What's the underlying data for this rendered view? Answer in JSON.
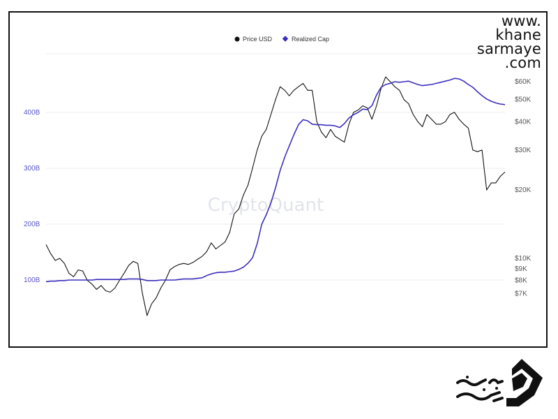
{
  "brand": {
    "site_lines": [
      "www.",
      "khane",
      "sarmaye",
      ".com"
    ],
    "watermark": "CryptoQuant",
    "logo_icon": "khane-sarmaye-logo-icon"
  },
  "colors": {
    "price": "#111111",
    "realized_cap": "#3b2ebd",
    "left_axis_text": "#5a53c6",
    "right_axis_text": "#555555",
    "grid": "#ececec"
  },
  "chart_data": {
    "type": "line",
    "legend": [
      "Price USD",
      "Realized Cap"
    ],
    "legend_placement": "top-center",
    "grid": true,
    "left_axis": {
      "ticks": [
        {
          "value": 100,
          "label": "100B"
        },
        {
          "value": 200,
          "label": "200B"
        },
        {
          "value": 300,
          "label": "300B"
        },
        {
          "value": 400,
          "label": "400B"
        }
      ],
      "unit": "B",
      "range": [
        35,
        505
      ]
    },
    "right_axis": {
      "scale": "log",
      "ticks": [
        {
          "value": 7000,
          "label": "$7K"
        },
        {
          "value": 8000,
          "label": "$8K"
        },
        {
          "value": 9000,
          "label": "$9K"
        },
        {
          "value": 10000,
          "label": "$10K"
        },
        {
          "value": 20000,
          "label": "$20K"
        },
        {
          "value": 30000,
          "label": "$30K"
        },
        {
          "value": 40000,
          "label": "$40K"
        },
        {
          "value": 50000,
          "label": "$50K"
        },
        {
          "value": 60000,
          "label": "$60K"
        }
      ]
    },
    "x_range": [
      0,
      100
    ],
    "series": [
      {
        "name": "Price USD",
        "axis": "right",
        "x": [
          0,
          1,
          2,
          3,
          4,
          5,
          6,
          7,
          8,
          9,
          10,
          11,
          12,
          13,
          14,
          15,
          16,
          17,
          18,
          19,
          20,
          21,
          22,
          23,
          24,
          25,
          26,
          27,
          28,
          29,
          30,
          31,
          32,
          33,
          34,
          35,
          36,
          37,
          38,
          39,
          40,
          41,
          42,
          43,
          44,
          45,
          46,
          47,
          48,
          49,
          50,
          51,
          52,
          53,
          54,
          55,
          56,
          57,
          58,
          59,
          60,
          61,
          62,
          63,
          64,
          65,
          66,
          67,
          68,
          69,
          70,
          71,
          72,
          73,
          74,
          75,
          76,
          77,
          78,
          79,
          80,
          81,
          82,
          83,
          84,
          85,
          86,
          87,
          88,
          89,
          90,
          91,
          92,
          93,
          94,
          95,
          96,
          97,
          98,
          99,
          100
        ],
        "y": [
          11500,
          10500,
          9800,
          10000,
          9500,
          8600,
          8300,
          8900,
          8800,
          8000,
          7700,
          7300,
          7600,
          7200,
          7100,
          7400,
          8000,
          8600,
          9300,
          9700,
          9500,
          7000,
          5600,
          6300,
          6700,
          7400,
          8000,
          8900,
          9200,
          9400,
          9500,
          9400,
          9600,
          9900,
          10200,
          10700,
          11700,
          11000,
          11400,
          11800,
          13000,
          15700,
          16500,
          19000,
          21000,
          25000,
          30000,
          34500,
          37000,
          43000,
          50000,
          57000,
          55000,
          52000,
          55000,
          57000,
          59000,
          55000,
          55000,
          40000,
          36000,
          34000,
          37000,
          34500,
          33500,
          32500,
          39000,
          44000,
          45000,
          47000,
          46000,
          41000,
          47000,
          56000,
          63000,
          60000,
          57000,
          55000,
          50000,
          48000,
          43000,
          40000,
          38000,
          43000,
          41000,
          39000,
          39000,
          40000,
          43000,
          44000,
          41000,
          39000,
          37500,
          30000,
          29500,
          30000,
          20000,
          21500,
          21500,
          23000,
          24000
        ]
      },
      {
        "name": "Realized Cap",
        "axis": "left",
        "x": [
          0,
          1,
          2,
          3,
          4,
          5,
          6,
          7,
          8,
          9,
          10,
          11,
          12,
          13,
          14,
          15,
          16,
          17,
          18,
          19,
          20,
          21,
          22,
          23,
          24,
          25,
          26,
          27,
          28,
          29,
          30,
          31,
          32,
          33,
          34,
          35,
          36,
          37,
          38,
          39,
          40,
          41,
          42,
          43,
          44,
          45,
          46,
          47,
          48,
          49,
          50,
          51,
          52,
          53,
          54,
          55,
          56,
          57,
          58,
          59,
          60,
          61,
          62,
          63,
          64,
          65,
          66,
          67,
          68,
          69,
          70,
          71,
          72,
          73,
          74,
          75,
          76,
          77,
          78,
          79,
          80,
          81,
          82,
          83,
          84,
          85,
          86,
          87,
          88,
          89,
          90,
          91,
          92,
          93,
          94,
          95,
          96,
          97,
          98,
          99,
          100
        ],
        "y": [
          97,
          98,
          98,
          99,
          99,
          100,
          100,
          100,
          100,
          100,
          100,
          101,
          101,
          101,
          101,
          101,
          101,
          101,
          102,
          102,
          102,
          101,
          99,
          99,
          99,
          100,
          100,
          100,
          100,
          101,
          102,
          102,
          102,
          103,
          104,
          108,
          111,
          113,
          114,
          114,
          115,
          116,
          119,
          123,
          130,
          140,
          165,
          200,
          217,
          238,
          265,
          296,
          320,
          340,
          360,
          378,
          387,
          385,
          379,
          378,
          378,
          377,
          377,
          376,
          373,
          380,
          390,
          396,
          400,
          406,
          405,
          412,
          431,
          445,
          450,
          452,
          455,
          454,
          455,
          456,
          453,
          450,
          448,
          449,
          450,
          452,
          454,
          456,
          458,
          461,
          460,
          456,
          450,
          445,
          437,
          430,
          424,
          420,
          417,
          415,
          414
        ]
      }
    ]
  }
}
